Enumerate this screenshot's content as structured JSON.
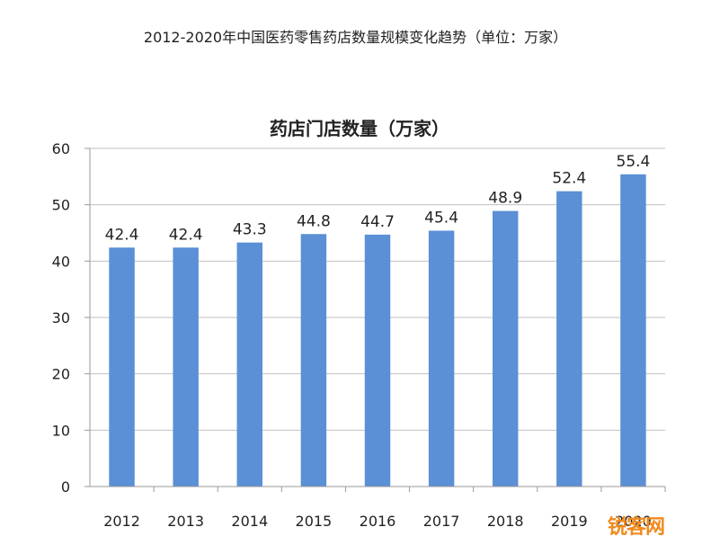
{
  "caption": "2012-2020年中国医药零售药店数量规模变化趋势（单位：万家）",
  "watermark": "锐客网",
  "colors": {
    "bar": "#5b8fd6",
    "grid": "#c0c0c0",
    "axis": "#9a9a9a",
    "text": "#222222"
  },
  "chart_data": {
    "type": "bar",
    "title": "药店门店数量（万家）",
    "xlabel": "",
    "ylabel": "",
    "categories": [
      "2012",
      "2013",
      "2014",
      "2015",
      "2016",
      "2017",
      "2018",
      "2019",
      "2020"
    ],
    "values": [
      42.4,
      42.4,
      43.3,
      44.8,
      44.7,
      45.4,
      48.9,
      52.4,
      55.4
    ],
    "data_labels": [
      "42.4",
      "42.4",
      "43.3",
      "44.8",
      "44.7",
      "45.4",
      "48.9",
      "52.4",
      "55.4"
    ],
    "ylim": [
      0,
      60
    ],
    "yticks": [
      "0",
      "10",
      "20",
      "30",
      "40",
      "50",
      "60"
    ],
    "ytick_values": [
      0,
      10,
      20,
      30,
      40,
      50,
      60
    ],
    "grid": true,
    "legend": "none"
  }
}
